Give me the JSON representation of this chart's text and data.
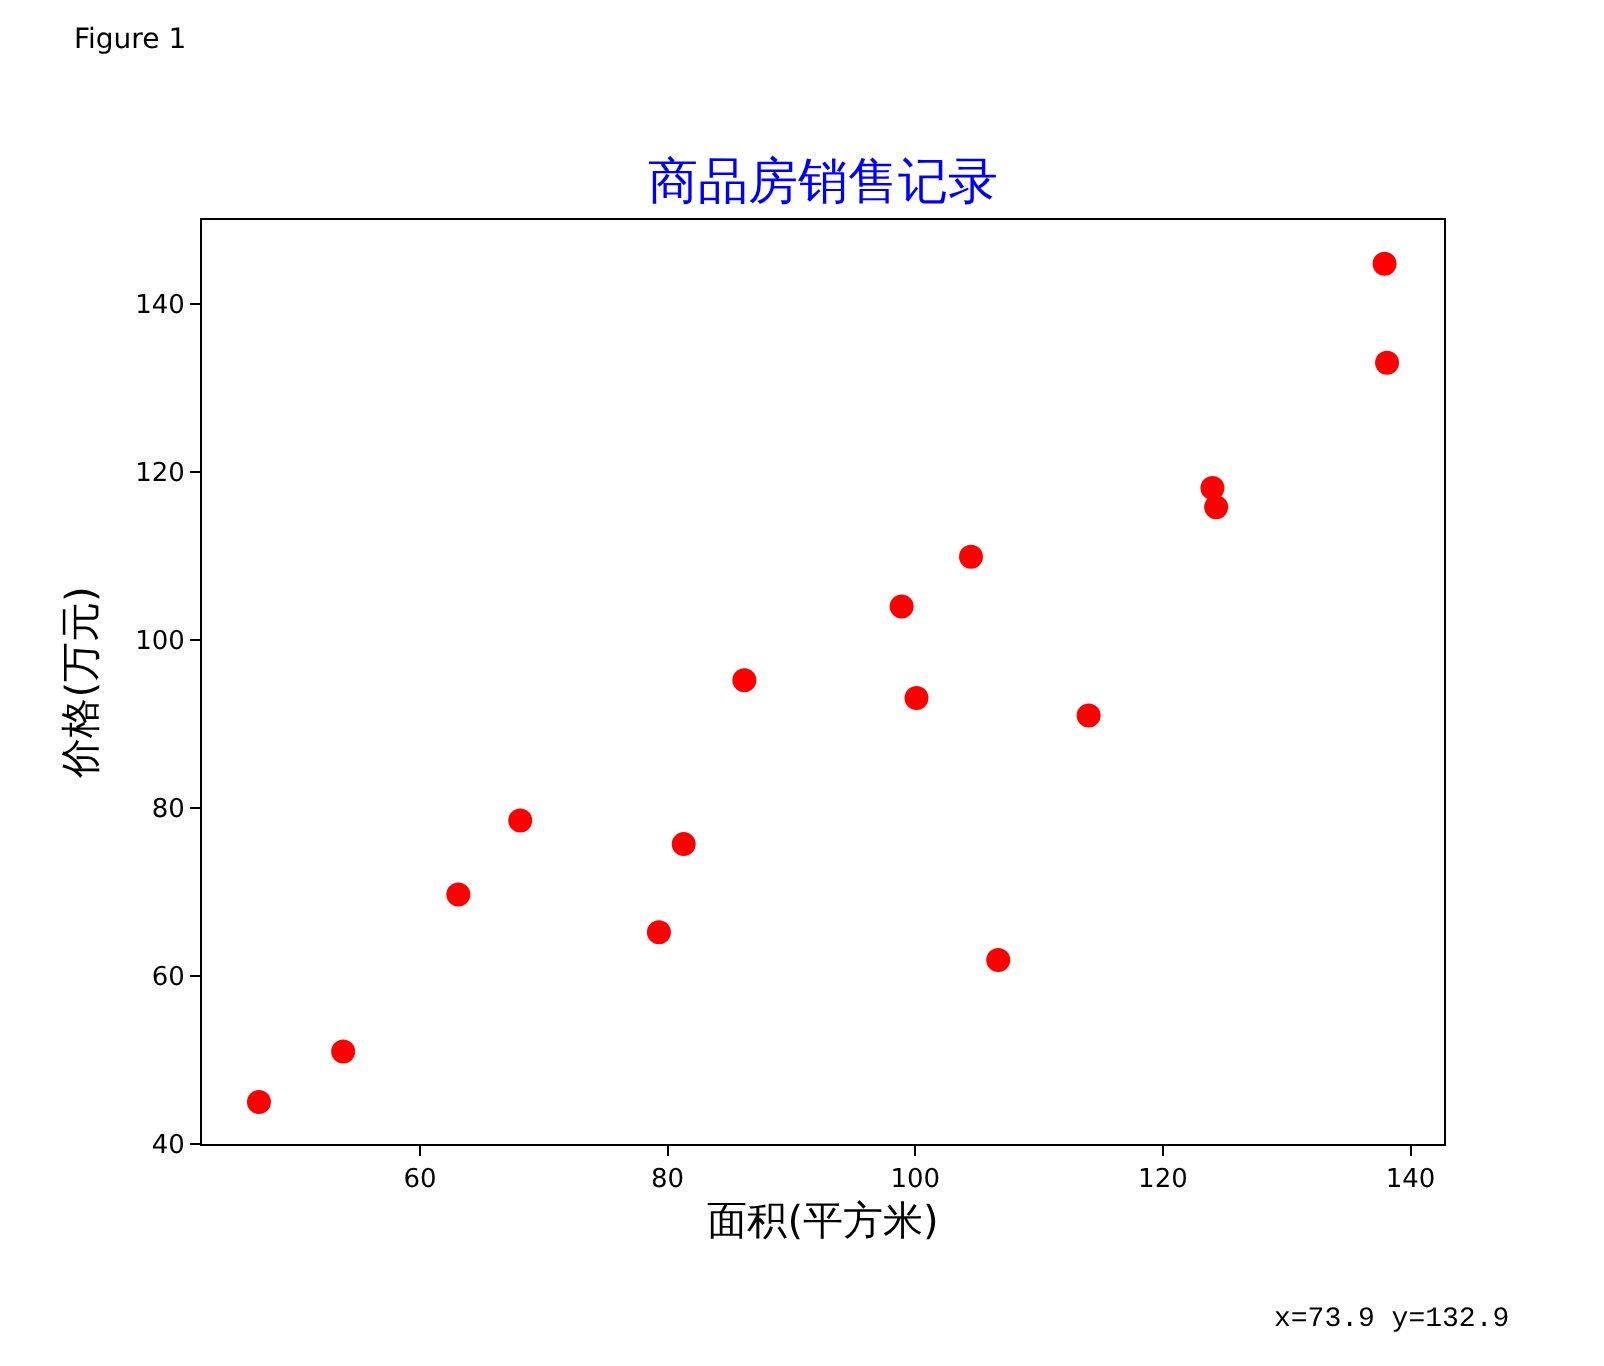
{
  "chart_data": {
    "type": "scatter",
    "title": "商品房销售记录",
    "xlabel": "面积(平方米)",
    "ylabel": "价格(万元)",
    "x": [
      47.0,
      53.8,
      63.1,
      68.1,
      79.3,
      81.3,
      86.2,
      98.9,
      100.1,
      104.5,
      106.7,
      114.0,
      124.0,
      124.3,
      137.9,
      138.1
    ],
    "values": [
      45.0,
      51.0,
      69.7,
      78.5,
      65.2,
      75.7,
      95.2,
      104.0,
      93.1,
      109.9,
      61.9,
      91.0,
      118.1,
      115.8,
      144.8,
      133.0
    ],
    "color": "#ff0000",
    "marker": "circle",
    "xlim": [
      42.4,
      142.7
    ],
    "ylim": [
      40,
      150
    ],
    "xticks": [
      60,
      80,
      100,
      120,
      140
    ],
    "yticks": [
      40,
      60,
      80,
      100,
      120,
      140
    ],
    "annotations": [
      "Figure 1",
      "x=73.9 y=132.9"
    ]
  }
}
